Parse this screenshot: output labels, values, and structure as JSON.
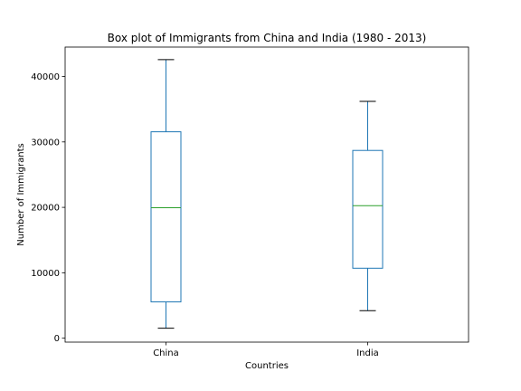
{
  "chart_data": {
    "type": "box",
    "title": "Box plot of Immigrants from China and India (1980 - 2013)",
    "xlabel": "Countries",
    "ylabel": "Number of Immigrants",
    "ylim": [
      -600,
      44500
    ],
    "yticks": [
      0,
      10000,
      20000,
      30000,
      40000
    ],
    "grid": false,
    "categories": [
      "China",
      "India"
    ],
    "boxes": [
      {
        "category": "China",
        "whisker_low": 1530,
        "q1": 5550,
        "median": 19950,
        "q3": 31550,
        "whisker_high": 42580
      },
      {
        "category": "India",
        "whisker_low": 4210,
        "q1": 10700,
        "median": 20250,
        "q3": 28700,
        "whisker_high": 36200
      }
    ],
    "colors": {
      "box": "#1f77b4",
      "median": "#2ca02c",
      "cap": "#000000",
      "axes": "#000000"
    }
  }
}
